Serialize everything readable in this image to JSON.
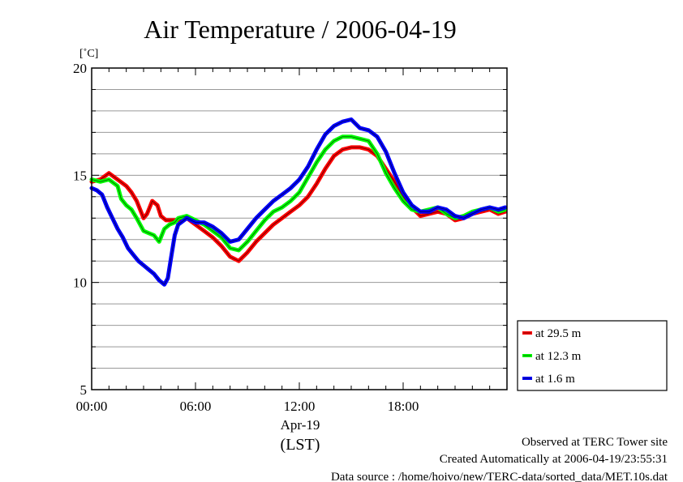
{
  "chart_data": {
    "type": "line",
    "title": "Air Temperature / 2006-04-19",
    "ylabel": "[˚C]",
    "xlabel_date": "Apr-19",
    "xlabel_tz": "(LST)",
    "x_unit": "hours",
    "xlim": [
      0,
      24
    ],
    "ylim": [
      5,
      20
    ],
    "x_ticks": [
      {
        "x": 0,
        "label": "00:00"
      },
      {
        "x": 6,
        "label": "06:00"
      },
      {
        "x": 12,
        "label": "12:00"
      },
      {
        "x": 18,
        "label": "18:00"
      }
    ],
    "y_ticks": [
      {
        "y": 5,
        "label": "5"
      },
      {
        "y": 10,
        "label": "10"
      },
      {
        "y": 15,
        "label": "15"
      },
      {
        "y": 20,
        "label": "20"
      }
    ],
    "grid": true,
    "legend_position": "right",
    "series": [
      {
        "name": "at 29.5 m",
        "color": "#ff0000",
        "x": [
          0,
          0.5,
          1,
          1.5,
          2,
          2.3,
          2.6,
          3,
          3.2,
          3.5,
          3.8,
          4,
          4.3,
          4.6,
          5,
          5.5,
          6,
          6.5,
          7,
          7.5,
          8,
          8.5,
          9,
          9.5,
          10,
          10.5,
          11,
          11.5,
          12,
          12.5,
          13,
          13.5,
          14,
          14.5,
          15,
          15.5,
          16,
          16.5,
          17,
          17.5,
          18,
          18.5,
          19,
          19.5,
          20,
          20.5,
          21,
          21.5,
          22,
          22.5,
          23,
          23.5,
          23.9
        ],
        "y": [
          14.7,
          14.8,
          15.1,
          14.8,
          14.5,
          14.2,
          13.8,
          13.0,
          13.2,
          13.8,
          13.6,
          13.1,
          12.9,
          12.9,
          12.9,
          13.0,
          12.7,
          12.4,
          12.1,
          11.7,
          11.2,
          11.0,
          11.4,
          11.9,
          12.3,
          12.7,
          13.0,
          13.3,
          13.6,
          14.0,
          14.6,
          15.3,
          15.9,
          16.2,
          16.3,
          16.3,
          16.2,
          15.9,
          15.3,
          14.7,
          14.0,
          13.5,
          13.1,
          13.2,
          13.3,
          13.2,
          12.9,
          13.0,
          13.2,
          13.3,
          13.4,
          13.2,
          13.3
        ]
      },
      {
        "name": "at 12.3 m",
        "color": "#00ff00",
        "x": [
          0,
          0.5,
          1,
          1.5,
          1.7,
          2,
          2.3,
          2.6,
          3,
          3.3,
          3.6,
          3.9,
          4.2,
          4.5,
          4.8,
          5,
          5.5,
          6,
          6.5,
          7,
          7.5,
          8,
          8.5,
          9,
          9.5,
          10,
          10.5,
          11,
          11.5,
          12,
          12.5,
          13,
          13.5,
          14,
          14.5,
          15,
          15.5,
          16,
          16.5,
          17,
          17.5,
          18,
          18.5,
          19,
          19.5,
          20,
          20.5,
          21,
          21.5,
          22,
          22.5,
          23,
          23.5,
          23.9
        ],
        "y": [
          14.8,
          14.7,
          14.8,
          14.5,
          13.9,
          13.6,
          13.4,
          13.0,
          12.4,
          12.3,
          12.2,
          11.9,
          12.5,
          12.7,
          12.8,
          13.0,
          13.1,
          12.9,
          12.7,
          12.4,
          12.1,
          11.6,
          11.5,
          11.9,
          12.4,
          12.9,
          13.3,
          13.5,
          13.8,
          14.2,
          14.9,
          15.6,
          16.2,
          16.6,
          16.8,
          16.8,
          16.7,
          16.6,
          16.0,
          15.1,
          14.4,
          13.8,
          13.4,
          13.3,
          13.4,
          13.5,
          13.2,
          13.0,
          13.1,
          13.3,
          13.4,
          13.5,
          13.3,
          13.4
        ]
      },
      {
        "name": "at 1.6 m",
        "color": "#0000ff",
        "x": [
          0,
          0.3,
          0.6,
          0.9,
          1.2,
          1.5,
          1.8,
          2.1,
          2.4,
          2.7,
          3,
          3.3,
          3.6,
          3.9,
          4.2,
          4.4,
          4.6,
          4.8,
          5,
          5.5,
          6,
          6.5,
          7,
          7.5,
          8,
          8.5,
          9,
          9.5,
          10,
          10.5,
          11,
          11.5,
          12,
          12.5,
          13,
          13.5,
          14,
          14.5,
          15,
          15.5,
          16,
          16.5,
          17,
          17.5,
          18,
          18.5,
          19,
          19.5,
          20,
          20.5,
          21,
          21.5,
          22,
          22.5,
          23,
          23.5,
          23.9
        ],
        "y": [
          14.4,
          14.3,
          14.1,
          13.5,
          13.0,
          12.5,
          12.1,
          11.6,
          11.3,
          11.0,
          10.8,
          10.6,
          10.4,
          10.1,
          9.9,
          10.2,
          11.2,
          12.2,
          12.7,
          13.0,
          12.8,
          12.8,
          12.6,
          12.3,
          11.9,
          12.0,
          12.5,
          13.0,
          13.4,
          13.8,
          14.1,
          14.4,
          14.8,
          15.4,
          16.2,
          16.9,
          17.3,
          17.5,
          17.6,
          17.2,
          17.1,
          16.8,
          16.1,
          15.1,
          14.2,
          13.6,
          13.3,
          13.3,
          13.5,
          13.4,
          13.1,
          13.0,
          13.2,
          13.4,
          13.5,
          13.4,
          13.5
        ]
      }
    ]
  },
  "footer": {
    "line1": "Observed at TERC Tower site",
    "line2": "Created Automatically at 2006-04-19/23:55:31",
    "line3": "Data source : /home/hoivo/new/TERC-data/sorted_data/MET.10s.dat"
  }
}
